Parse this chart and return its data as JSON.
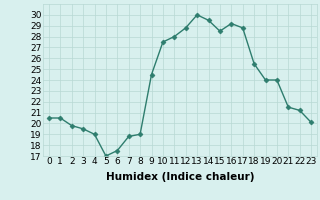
{
  "x": [
    0,
    1,
    2,
    3,
    4,
    5,
    6,
    7,
    8,
    9,
    10,
    11,
    12,
    13,
    14,
    15,
    16,
    17,
    18,
    19,
    20,
    21,
    22,
    23
  ],
  "y": [
    20.5,
    20.5,
    19.8,
    19.5,
    19.0,
    17.0,
    17.5,
    18.8,
    19.0,
    24.5,
    27.5,
    28.0,
    28.8,
    30.0,
    29.5,
    28.5,
    29.2,
    28.8,
    25.5,
    24.0,
    24.0,
    21.5,
    21.2,
    20.1
  ],
  "line_color": "#2e7d6e",
  "marker": "D",
  "markersize": 2.5,
  "linewidth": 1.0,
  "bg_color": "#d8f0ee",
  "grid_color": "#b8d8d4",
  "xlabel": "Humidex (Indice chaleur)",
  "xlim": [
    -0.5,
    23.5
  ],
  "ylim": [
    17,
    31
  ],
  "yticks": [
    17,
    18,
    19,
    20,
    21,
    22,
    23,
    24,
    25,
    26,
    27,
    28,
    29,
    30
  ],
  "xticks": [
    0,
    1,
    2,
    3,
    4,
    5,
    6,
    7,
    8,
    9,
    10,
    11,
    12,
    13,
    14,
    15,
    16,
    17,
    18,
    19,
    20,
    21,
    22,
    23
  ],
  "xlabel_fontsize": 7.5,
  "tick_fontsize": 6.5
}
